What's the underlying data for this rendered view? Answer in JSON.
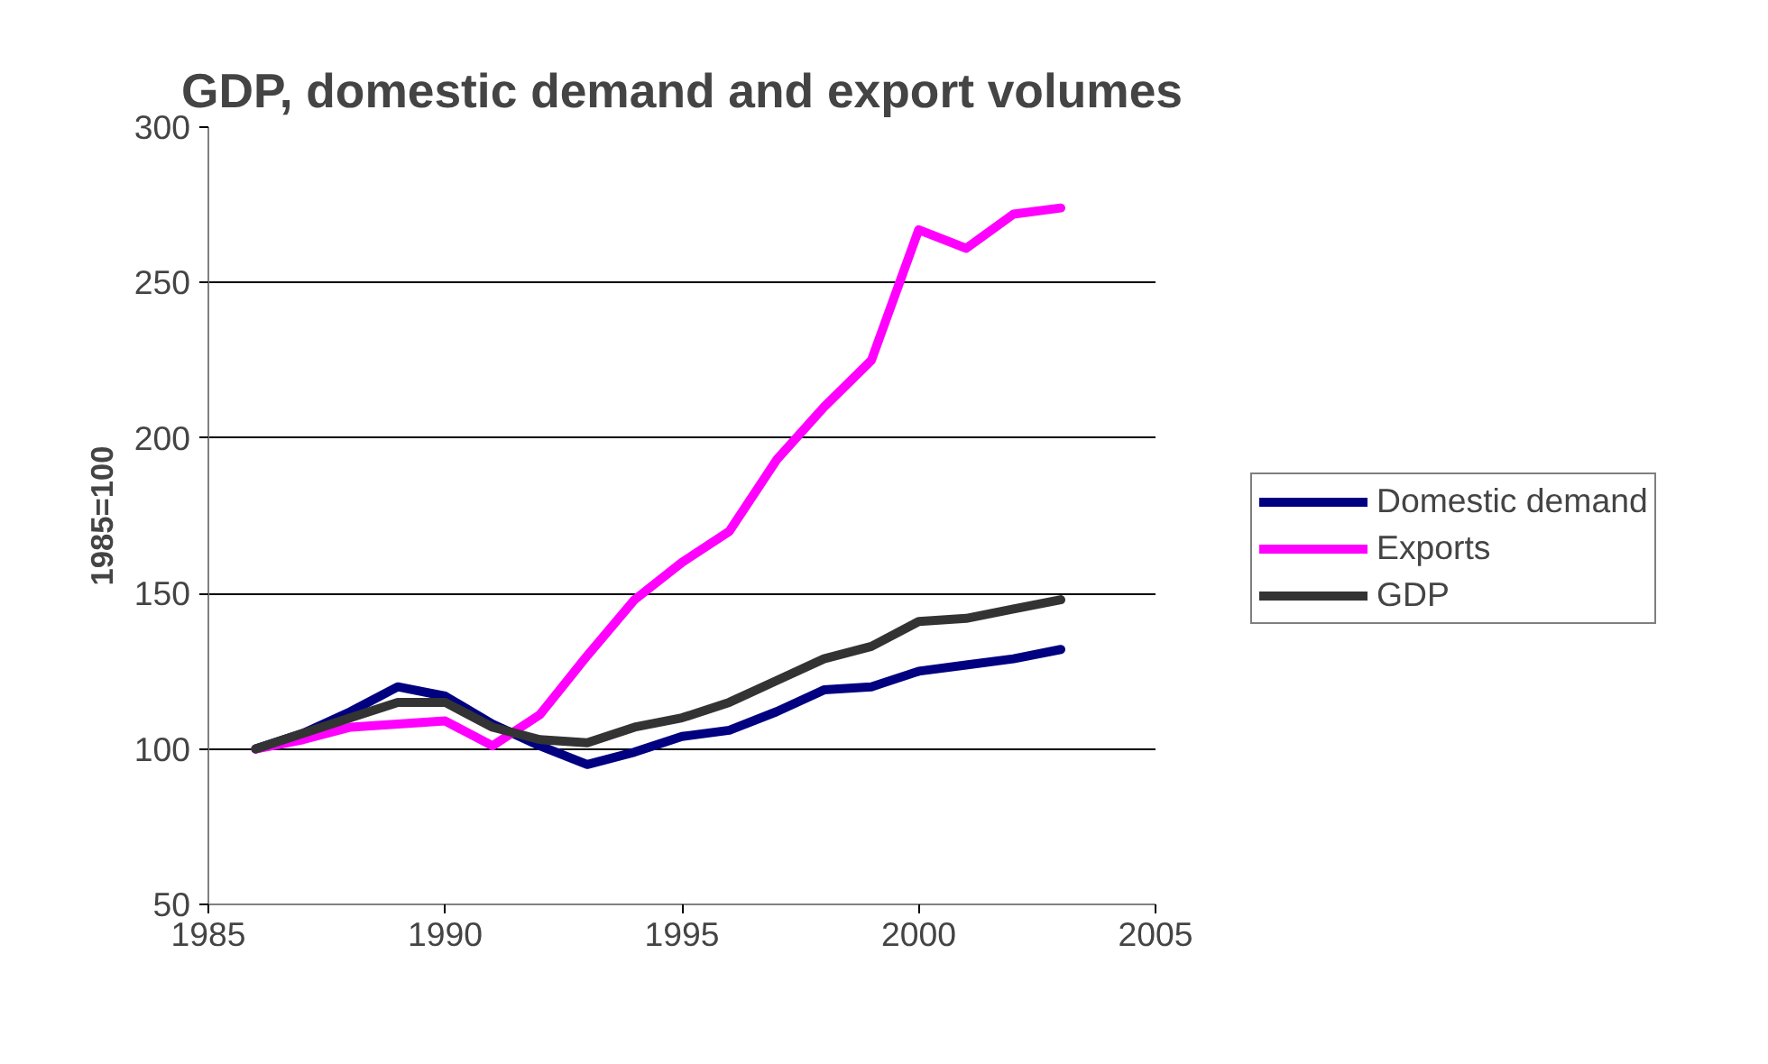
{
  "chart_data": {
    "type": "line",
    "title": "GDP, domestic demand and export volumes",
    "ylabel": "1985=100",
    "x": [
      1986,
      1987,
      1988,
      1989,
      1990,
      1991,
      1992,
      1993,
      1994,
      1995,
      1996,
      1997,
      1998,
      1999,
      2000,
      2001,
      2002,
      2003
    ],
    "series": [
      {
        "name": "Domestic demand",
        "color": "#000080",
        "values": [
          100,
          105,
          112,
          120,
          117,
          108,
          101,
          95,
          99,
          104,
          106,
          112,
          119,
          120,
          125,
          127,
          129,
          132
        ]
      },
      {
        "name": "Exports",
        "color": "#ff00ff",
        "values": [
          100,
          103,
          107,
          108,
          109,
          101,
          111,
          130,
          148,
          160,
          170,
          193,
          210,
          225,
          267,
          261,
          272,
          274
        ]
      },
      {
        "name": "GDP",
        "color": "#333333",
        "values": [
          100,
          105,
          110,
          115,
          115,
          107,
          103,
          102,
          107,
          110,
          115,
          122,
          129,
          133,
          141,
          142,
          145,
          148
        ]
      }
    ],
    "xlim": [
      1985,
      2005
    ],
    "xticks": [
      1985,
      1990,
      1995,
      2000,
      2005
    ],
    "ylim": [
      50,
      300
    ],
    "yticks": [
      50,
      100,
      150,
      200,
      250,
      300
    ],
    "grid": "y",
    "legend": "right",
    "marker": "none",
    "line_style": "solid"
  }
}
